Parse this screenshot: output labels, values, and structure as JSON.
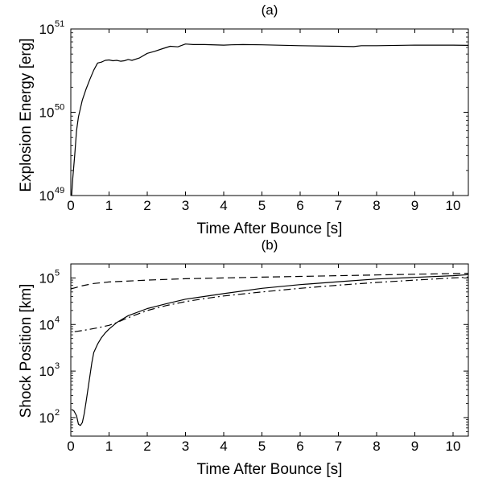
{
  "chart_data": [
    {
      "type": "line",
      "title": "(a)",
      "xlabel": "Time After Bounce [s]",
      "ylabel": "Explosion Energy [erg]",
      "xlim": [
        0,
        10.4
      ],
      "ylim": [
        1e+49,
        1e+51
      ],
      "yscale": "log",
      "grid": false,
      "x_ticks": [
        "0",
        "1",
        "2",
        "3",
        "4",
        "5",
        "6",
        "7",
        "8",
        "9",
        "10"
      ],
      "y_ticks": [
        {
          "base": "10",
          "exp": "49",
          "value": 1e+49
        },
        {
          "base": "10",
          "exp": "50",
          "value": 1e+50
        },
        {
          "base": "10",
          "exp": "51",
          "value": 1e+51
        }
      ],
      "series": [
        {
          "style": "solid",
          "points": [
            [
              0.02,
              1e+49
            ],
            [
              0.05,
              1.6e+49
            ],
            [
              0.1,
              3e+49
            ],
            [
              0.15,
              6e+49
            ],
            [
              0.2,
              8.8e+49
            ],
            [
              0.3,
              1.4e+50
            ],
            [
              0.4,
              1.9e+50
            ],
            [
              0.5,
              2.5e+50
            ],
            [
              0.6,
              3.2e+50
            ],
            [
              0.7,
              3.9e+50
            ],
            [
              0.8,
              4e+50
            ],
            [
              0.9,
              4.2e+50
            ],
            [
              1.0,
              4.25e+50
            ],
            [
              1.1,
              4.15e+50
            ],
            [
              1.2,
              4.2e+50
            ],
            [
              1.3,
              4.1e+50
            ],
            [
              1.4,
              4.15e+50
            ],
            [
              1.5,
              4.3e+50
            ],
            [
              1.6,
              4.2e+50
            ],
            [
              1.8,
              4.5e+50
            ],
            [
              2.0,
              5.1e+50
            ],
            [
              2.2,
              5.4e+50
            ],
            [
              2.4,
              5.8e+50
            ],
            [
              2.6,
              6.2e+50
            ],
            [
              2.8,
              6.1e+50
            ],
            [
              3.0,
              6.6e+50
            ],
            [
              3.2,
              6.5e+50
            ],
            [
              3.5,
              6.5e+50
            ],
            [
              4.0,
              6.4e+50
            ],
            [
              4.2,
              6.45e+50
            ],
            [
              4.5,
              6.5e+50
            ],
            [
              5.0,
              6.45e+50
            ],
            [
              6.0,
              6.3e+50
            ],
            [
              7.0,
              6.2e+50
            ],
            [
              7.4,
              6.15e+50
            ],
            [
              7.6,
              6.3e+50
            ],
            [
              8.0,
              6.3e+50
            ],
            [
              9.0,
              6.4e+50
            ],
            [
              10.0,
              6.4e+50
            ],
            [
              10.4,
              6.35e+50
            ]
          ]
        }
      ]
    },
    {
      "type": "line",
      "title": "(b)",
      "xlabel": "Time After Bounce [s]",
      "ylabel": "Shock Position [km]",
      "xlim": [
        0,
        10.4
      ],
      "ylim": [
        40,
        200000
      ],
      "yscale": "log",
      "grid": false,
      "x_ticks": [
        "0",
        "1",
        "2",
        "3",
        "4",
        "5",
        "6",
        "7",
        "8",
        "9",
        "10"
      ],
      "y_ticks": [
        {
          "base": "10",
          "exp": "2",
          "value": 100
        },
        {
          "base": "10",
          "exp": "3",
          "value": 1000
        },
        {
          "base": "10",
          "exp": "4",
          "value": 10000
        },
        {
          "base": "10",
          "exp": "5",
          "value": 100000
        }
      ],
      "series": [
        {
          "style": "solid",
          "points": [
            [
              0.02,
              150
            ],
            [
              0.08,
              140
            ],
            [
              0.15,
              110
            ],
            [
              0.2,
              72
            ],
            [
              0.25,
              68
            ],
            [
              0.3,
              78
            ],
            [
              0.35,
              120
            ],
            [
              0.4,
              220
            ],
            [
              0.45,
              420
            ],
            [
              0.5,
              800
            ],
            [
              0.55,
              1500
            ],
            [
              0.6,
              2500
            ],
            [
              0.7,
              3800
            ],
            [
              0.8,
              5200
            ],
            [
              0.9,
              6600
            ],
            [
              1.0,
              8000
            ],
            [
              1.2,
              11000
            ],
            [
              1.5,
              15500
            ],
            [
              2.0,
              22000
            ],
            [
              2.5,
              28000
            ],
            [
              3.0,
              35000
            ],
            [
              3.5,
              40000
            ],
            [
              4.0,
              46000
            ],
            [
              5.0,
              60000
            ],
            [
              6.0,
              72000
            ],
            [
              7.0,
              83000
            ],
            [
              8.0,
              95000
            ],
            [
              9.0,
              103000
            ],
            [
              10.0,
              112000
            ],
            [
              10.4,
              118000
            ]
          ]
        },
        {
          "style": "dashed",
          "points": [
            [
              0.0,
              58000
            ],
            [
              0.3,
              68000
            ],
            [
              0.6,
              76000
            ],
            [
              1.0,
              82000
            ],
            [
              2.0,
              90000
            ],
            [
              3.0,
              96000
            ],
            [
              4.0,
              100000
            ],
            [
              5.0,
              104000
            ],
            [
              6.0,
              108000
            ],
            [
              7.0,
              112000
            ],
            [
              8.0,
              116000
            ],
            [
              9.0,
              120000
            ],
            [
              10.0,
              124000
            ],
            [
              10.4,
              126000
            ]
          ]
        },
        {
          "style": "dashdot",
          "points": [
            [
              0.1,
              7000
            ],
            [
              0.3,
              7400
            ],
            [
              0.5,
              7900
            ],
            [
              0.7,
              8500
            ],
            [
              1.0,
              9600
            ],
            [
              1.2,
              11000
            ],
            [
              1.5,
              14000
            ],
            [
              2.0,
              20000
            ],
            [
              2.5,
              25500
            ],
            [
              3.0,
              31000
            ],
            [
              3.5,
              36000
            ],
            [
              4.0,
              41000
            ],
            [
              5.0,
              50000
            ],
            [
              6.0,
              60000
            ],
            [
              7.0,
              70000
            ],
            [
              8.0,
              80000
            ],
            [
              9.0,
              90000
            ],
            [
              10.0,
              100000
            ],
            [
              10.4,
              104000
            ]
          ]
        }
      ]
    }
  ]
}
